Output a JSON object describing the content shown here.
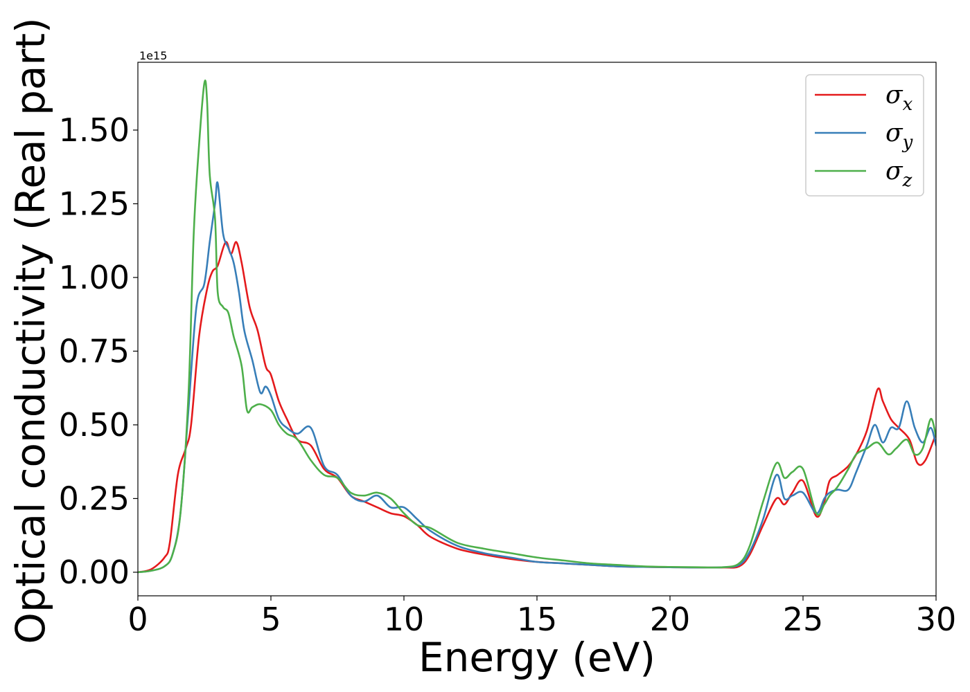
{
  "chart_data": {
    "type": "line",
    "title": "",
    "xlabel": "Energy (eV)",
    "ylabel": "Optical conductivity (Real part)",
    "y_offset_label": "1e15",
    "xlim": [
      0,
      30
    ],
    "ylim": [
      -0.08,
      1.73
    ],
    "x_ticks": [
      0,
      5,
      10,
      15,
      20,
      25,
      30
    ],
    "x_tick_labels": [
      "0",
      "5",
      "10",
      "15",
      "20",
      "25",
      "30"
    ],
    "y_ticks": [
      0.0,
      0.25,
      0.5,
      0.75,
      1.0,
      1.25,
      1.5
    ],
    "y_tick_labels": [
      "0.00",
      "0.25",
      "0.50",
      "0.75",
      "1.00",
      "1.25",
      "1.50"
    ],
    "grid": false,
    "legend_position": "top-right",
    "series": [
      {
        "name": "σx",
        "legend_base": "σ",
        "legend_sub": "x",
        "color": "#e41a1c",
        "x": [
          0,
          0.5,
          1.0,
          1.2,
          1.5,
          1.8,
          2.0,
          2.3,
          2.6,
          2.8,
          3.0,
          3.3,
          3.5,
          3.7,
          3.9,
          4.2,
          4.5,
          4.8,
          5.0,
          5.3,
          5.6,
          6.0,
          6.5,
          7.0,
          7.5,
          8.0,
          8.5,
          9.0,
          9.5,
          10.0,
          10.5,
          11.0,
          12.0,
          13.0,
          14.0,
          15.0,
          16.0,
          17.0,
          18.0,
          19.0,
          20.0,
          21.0,
          22.0,
          22.6,
          23.0,
          23.5,
          24.0,
          24.3,
          24.6,
          25.0,
          25.5,
          25.8,
          26.0,
          26.3,
          26.7,
          27.0,
          27.4,
          27.8,
          28.0,
          28.3,
          28.6,
          29.0,
          29.3,
          29.6,
          30.0
        ],
        "y": [
          0.0,
          0.01,
          0.05,
          0.1,
          0.33,
          0.42,
          0.5,
          0.8,
          0.96,
          1.02,
          1.04,
          1.12,
          1.08,
          1.12,
          1.05,
          0.9,
          0.82,
          0.7,
          0.67,
          0.58,
          0.52,
          0.45,
          0.43,
          0.35,
          0.32,
          0.26,
          0.24,
          0.22,
          0.2,
          0.19,
          0.16,
          0.12,
          0.08,
          0.06,
          0.045,
          0.035,
          0.03,
          0.025,
          0.02,
          0.018,
          0.017,
          0.016,
          0.016,
          0.02,
          0.06,
          0.16,
          0.25,
          0.23,
          0.27,
          0.31,
          0.19,
          0.24,
          0.31,
          0.33,
          0.36,
          0.4,
          0.48,
          0.62,
          0.58,
          0.52,
          0.49,
          0.45,
          0.37,
          0.38,
          0.47
        ]
      },
      {
        "name": "σy",
        "legend_base": "σ",
        "legend_sub": "y",
        "color": "#377eb8",
        "x": [
          0,
          0.5,
          1.0,
          1.3,
          1.6,
          1.9,
          2.2,
          2.5,
          2.7,
          2.9,
          3.0,
          3.2,
          3.4,
          3.6,
          3.8,
          4.0,
          4.3,
          4.6,
          4.8,
          5.0,
          5.3,
          5.6,
          6.0,
          6.5,
          7.0,
          7.5,
          8.0,
          8.5,
          9.0,
          9.5,
          10.0,
          10.5,
          11.0,
          12.0,
          13.0,
          14.0,
          15.0,
          16.0,
          17.0,
          18.0,
          19.0,
          20.0,
          21.0,
          22.0,
          22.6,
          23.0,
          23.5,
          24.0,
          24.3,
          24.6,
          25.0,
          25.5,
          25.8,
          26.0,
          26.3,
          26.7,
          27.0,
          27.4,
          27.7,
          28.0,
          28.3,
          28.6,
          28.9,
          29.2,
          29.5,
          29.8,
          30.0
        ],
        "y": [
          0.0,
          0.005,
          0.02,
          0.06,
          0.2,
          0.55,
          0.9,
          0.98,
          1.12,
          1.25,
          1.32,
          1.15,
          1.1,
          1.05,
          0.95,
          0.82,
          0.72,
          0.61,
          0.63,
          0.6,
          0.52,
          0.49,
          0.47,
          0.49,
          0.36,
          0.33,
          0.26,
          0.24,
          0.26,
          0.22,
          0.22,
          0.18,
          0.14,
          0.09,
          0.065,
          0.05,
          0.035,
          0.03,
          0.025,
          0.02,
          0.018,
          0.017,
          0.016,
          0.017,
          0.025,
          0.07,
          0.18,
          0.33,
          0.25,
          0.26,
          0.27,
          0.2,
          0.25,
          0.27,
          0.28,
          0.28,
          0.34,
          0.43,
          0.5,
          0.44,
          0.49,
          0.49,
          0.58,
          0.49,
          0.44,
          0.49,
          0.43
        ]
      },
      {
        "name": "σz",
        "legend_base": "σ",
        "legend_sub": "z",
        "color": "#4daf4a",
        "x": [
          0,
          0.5,
          1.0,
          1.3,
          1.6,
          1.9,
          2.1,
          2.3,
          2.5,
          2.6,
          2.7,
          2.9,
          3.0,
          3.2,
          3.4,
          3.6,
          3.9,
          4.1,
          4.3,
          4.6,
          5.0,
          5.3,
          5.6,
          6.0,
          6.5,
          7.0,
          7.5,
          8.0,
          8.5,
          9.0,
          9.5,
          10.0,
          10.5,
          11.0,
          12.0,
          13.0,
          14.0,
          15.0,
          16.0,
          17.0,
          18.0,
          19.0,
          20.0,
          21.0,
          22.0,
          22.6,
          23.0,
          23.5,
          24.0,
          24.3,
          24.6,
          25.0,
          25.5,
          25.8,
          26.0,
          26.3,
          26.7,
          27.0,
          27.4,
          27.8,
          28.2,
          28.5,
          28.9,
          29.2,
          29.5,
          29.8,
          30.0
        ],
        "y": [
          0.0,
          0.005,
          0.02,
          0.06,
          0.2,
          0.6,
          1.15,
          1.45,
          1.66,
          1.6,
          1.35,
          1.2,
          0.95,
          0.9,
          0.88,
          0.8,
          0.7,
          0.55,
          0.56,
          0.57,
          0.55,
          0.5,
          0.47,
          0.45,
          0.38,
          0.33,
          0.32,
          0.27,
          0.26,
          0.27,
          0.25,
          0.2,
          0.16,
          0.15,
          0.1,
          0.08,
          0.065,
          0.05,
          0.04,
          0.03,
          0.025,
          0.02,
          0.018,
          0.017,
          0.017,
          0.03,
          0.09,
          0.24,
          0.37,
          0.32,
          0.34,
          0.35,
          0.2,
          0.23,
          0.26,
          0.29,
          0.35,
          0.4,
          0.42,
          0.44,
          0.4,
          0.42,
          0.45,
          0.4,
          0.42,
          0.52,
          0.46
        ]
      }
    ]
  }
}
